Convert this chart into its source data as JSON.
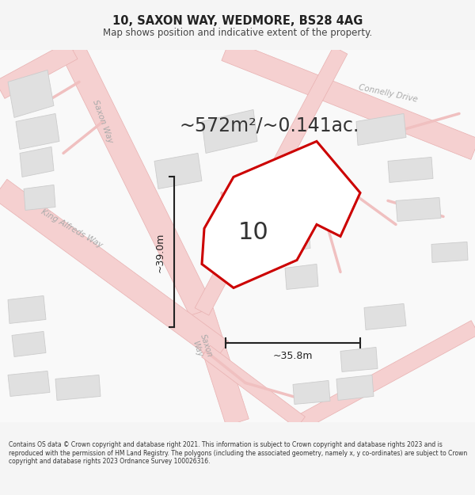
{
  "title_line1": "10, SAXON WAY, WEDMORE, BS28 4AG",
  "title_line2": "Map shows position and indicative extent of the property.",
  "area_label": "~572m²/~0.141ac.",
  "plot_number": "10",
  "dim_vertical": "~39.0m",
  "dim_horizontal": "~35.8m",
  "footer_text": "Contains OS data © Crown copyright and database right 2021. This information is subject to Crown copyright and database rights 2023 and is reproduced with the permission of HM Land Registry. The polygons (including the associated geometry, namely x, y co-ordinates) are subject to Crown copyright and database rights 2023 Ordnance Survey 100026316.",
  "map_bg": "#f8f8f8",
  "plot_fill": "#ffffff",
  "plot_edge": "#cc0000",
  "building_fill": "#e0e0e0",
  "building_edge": "#cccccc",
  "road_fill": "#f5d0d0",
  "road_edge": "#e8b0b0",
  "road_thin_color": "#e8b0b0",
  "road_label_color": "#aaaaaa",
  "dim_color": "#222222",
  "label_area_color": "#333333",
  "label_plot_color": "#333333",
  "title_color": "#222222",
  "footer_color": "#333333",
  "bg_color": "#f5f5f5"
}
